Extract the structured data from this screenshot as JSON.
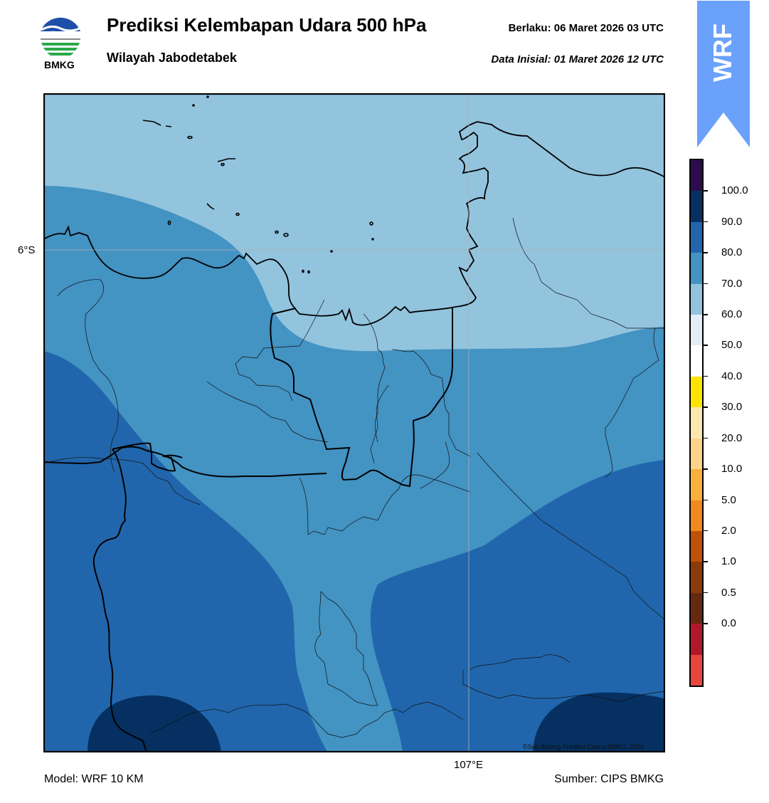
{
  "header": {
    "title": "Prediksi Kelembapan Udara 500 hPa",
    "subtitle": "Wilayah Jabodetabek",
    "valid_time": "Berlaku:  06 Maret 2026 03 UTC",
    "init_time": "Data Inisial:  01 Maret 2026 12 UTC"
  },
  "logo": {
    "label": "BMKG",
    "icon": "bmkg-logo-icon"
  },
  "badge": {
    "label": "WRF",
    "color": "#6aa1fb"
  },
  "map": {
    "lat_label": "6°S",
    "lon_label": "107°E",
    "copyright": "©Sub Bidang Prediksi Cuaca BMKG, 2026",
    "fill_colors": [
      "#92c4de",
      "#4393c3",
      "#2166ac",
      "#053061"
    ]
  },
  "colorbar": {
    "labels": [
      "100.0",
      "90.0",
      "80.0",
      "70.0",
      "60.0",
      "50.0",
      "40.0",
      "30.0",
      "20.0",
      "10.0",
      "5.0",
      "2.0",
      "1.0",
      "0.5",
      "0.0"
    ],
    "colors": [
      "#e8453c",
      "#b2182b",
      "#67290d",
      "#8b3a0a",
      "#c0510a",
      "#f08a1d",
      "#fbb03b",
      "#fdd38a",
      "#fde7b0",
      "#ffe400",
      "#ffffff",
      "#e2edf5",
      "#92c4de",
      "#4393c3",
      "#2166ac",
      "#053061",
      "#2d0b4e"
    ]
  },
  "footer": {
    "model": "Model: WRF 10 KM",
    "source": "Sumber: CIPS BMKG"
  }
}
